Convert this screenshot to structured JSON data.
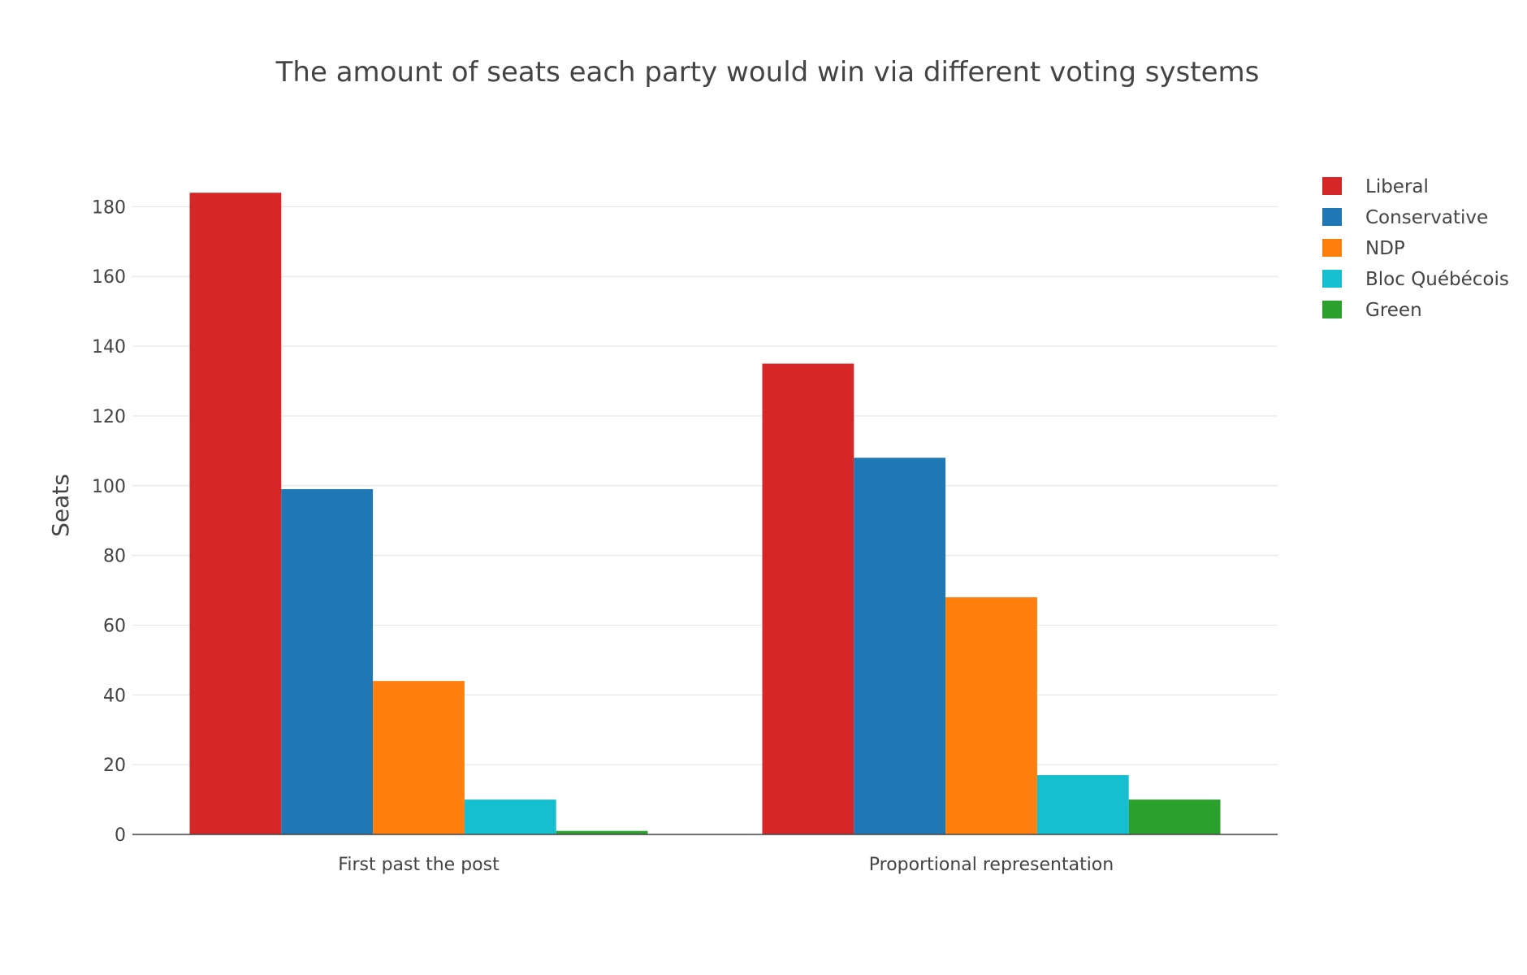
{
  "chart_data": {
    "type": "bar",
    "title": "The amount of seats each party would win via different voting systems",
    "xlabel": "",
    "ylabel": "Seats",
    "categories": [
      "First past the post",
      "Proportional representation"
    ],
    "series": [
      {
        "name": "Liberal",
        "values": [
          184,
          135
        ],
        "color": "#d62728"
      },
      {
        "name": "Conservative",
        "values": [
          99,
          108
        ],
        "color": "#1f77b4"
      },
      {
        "name": "NDP",
        "values": [
          44,
          68
        ],
        "color": "#ff7f0e"
      },
      {
        "name": "Bloc Québécois",
        "values": [
          10,
          17
        ],
        "color": "#17becf"
      },
      {
        "name": "Green",
        "values": [
          1,
          10
        ],
        "color": "#2ca02c"
      }
    ],
    "ylim": [
      0,
      195
    ],
    "yticks": [
      0,
      20,
      40,
      60,
      80,
      100,
      120,
      140,
      160,
      180
    ],
    "grid": true,
    "legend_position": "top-right"
  }
}
